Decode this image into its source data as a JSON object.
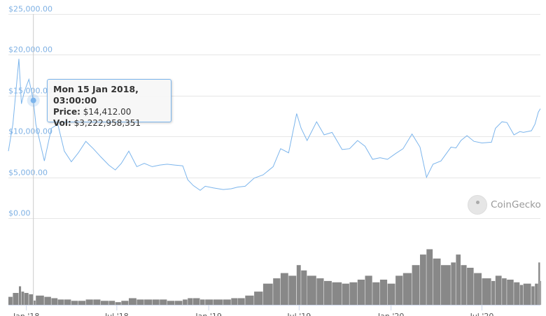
{
  "chart_data": [
    {
      "type": "line",
      "ylabel": "",
      "xlabel": "",
      "yticks": [
        "$0.00",
        "$5,000.00",
        "$10,000.00",
        "$15,000.00",
        "$20,000.00",
        "$25,000.00"
      ],
      "ylim": [
        0,
        25000
      ],
      "xticks": [
        "Jan '18",
        "Jul '18",
        "Jan '19",
        "Jul '19",
        "Jan '20",
        "Jul '20"
      ],
      "xtick_dates": [
        "2018-01-01",
        "2018-07-01",
        "2019-01-01",
        "2019-07-01",
        "2020-01-01",
        "2020-07-01"
      ],
      "xlim": [
        "2017-11-26",
        "2020-10-26"
      ],
      "grid": true,
      "color": "#7cb5ec",
      "series": [
        {
          "x": [
            "2017-11-26",
            "2017-12-05",
            "2017-12-17",
            "2017-12-22",
            "2017-12-28",
            "2018-01-06",
            "2018-01-15",
            "2018-01-20",
            "2018-02-06",
            "2018-02-20",
            "2018-03-05",
            "2018-03-18",
            "2018-04-01",
            "2018-04-15",
            "2018-04-30",
            "2018-05-15",
            "2018-05-30",
            "2018-06-15",
            "2018-06-28",
            "2018-07-10",
            "2018-07-25",
            "2018-08-10",
            "2018-08-25",
            "2018-09-10",
            "2018-09-25",
            "2018-10-10",
            "2018-10-25",
            "2018-11-10",
            "2018-11-20",
            "2018-12-01",
            "2018-12-15",
            "2018-12-25",
            "2019-01-10",
            "2019-01-30",
            "2019-02-15",
            "2019-02-28",
            "2019-03-15",
            "2019-04-02",
            "2019-04-20",
            "2019-05-10",
            "2019-05-25",
            "2019-06-10",
            "2019-06-26",
            "2019-07-05",
            "2019-07-17",
            "2019-08-05",
            "2019-08-20",
            "2019-09-05",
            "2019-09-25",
            "2019-10-10",
            "2019-10-26",
            "2019-11-10",
            "2019-11-25",
            "2019-12-10",
            "2019-12-25",
            "2020-01-10",
            "2020-01-25",
            "2020-02-12",
            "2020-02-28",
            "2020-03-12",
            "2020-03-25",
            "2020-04-10",
            "2020-04-30",
            "2020-05-10",
            "2020-05-20",
            "2020-06-01",
            "2020-06-15",
            "2020-07-01",
            "2020-07-20",
            "2020-07-28",
            "2020-08-10",
            "2020-08-20",
            "2020-09-03",
            "2020-09-15",
            "2020-09-22",
            "2020-10-08",
            "2020-10-15",
            "2020-10-22",
            "2020-10-26"
          ],
          "price": [
            8200,
            11500,
            19500,
            14000,
            15500,
            17000,
            14412,
            11500,
            7000,
            11000,
            11500,
            8200,
            6900,
            8000,
            9400,
            8500,
            7500,
            6500,
            5900,
            6700,
            8200,
            6300,
            6700,
            6300,
            6500,
            6600,
            6500,
            6400,
            4700,
            4000,
            3400,
            3900,
            3700,
            3500,
            3600,
            3800,
            3900,
            4900,
            5300,
            6300,
            8500,
            8000,
            12800,
            11000,
            9500,
            11800,
            10200,
            10500,
            8400,
            8500,
            9500,
            8800,
            7200,
            7400,
            7200,
            7900,
            8500,
            10300,
            8700,
            5000,
            6600,
            7000,
            8700,
            8600,
            9500,
            10100,
            9400,
            9200,
            9300,
            11000,
            11800,
            11700,
            10200,
            10600,
            10500,
            10700,
            11500,
            13000,
            13400
          ],
          "volume": [
            6,
            9,
            14,
            10,
            9,
            8,
            3.2,
            7,
            6,
            5,
            4,
            4,
            3,
            3,
            4,
            4,
            3,
            3,
            2,
            3,
            5,
            4,
            4,
            4,
            4,
            3,
            3,
            4,
            5,
            5,
            4,
            4,
            4,
            4,
            5,
            5,
            7,
            10,
            16,
            20,
            24,
            22,
            30,
            26,
            22,
            20,
            18,
            17,
            16,
            17,
            19,
            22,
            17,
            19,
            16,
            22,
            24,
            30,
            38,
            42,
            35,
            30,
            32,
            38,
            30,
            28,
            24,
            20,
            18,
            22,
            20,
            19,
            17,
            15,
            16,
            14,
            16,
            32,
            18
          ]
        }
      ],
      "volume_unit_billions_usd": true,
      "volume_color": "#888888"
    }
  ],
  "tooltip": {
    "date": "Mon 15 Jan 2018, 03:00:00",
    "price_label": "Price:",
    "price_value": "$14,412.00",
    "vol_label": "Vol:",
    "vol_value": "$3,222,958,351"
  },
  "watermark": {
    "text": "CoinGecko"
  }
}
